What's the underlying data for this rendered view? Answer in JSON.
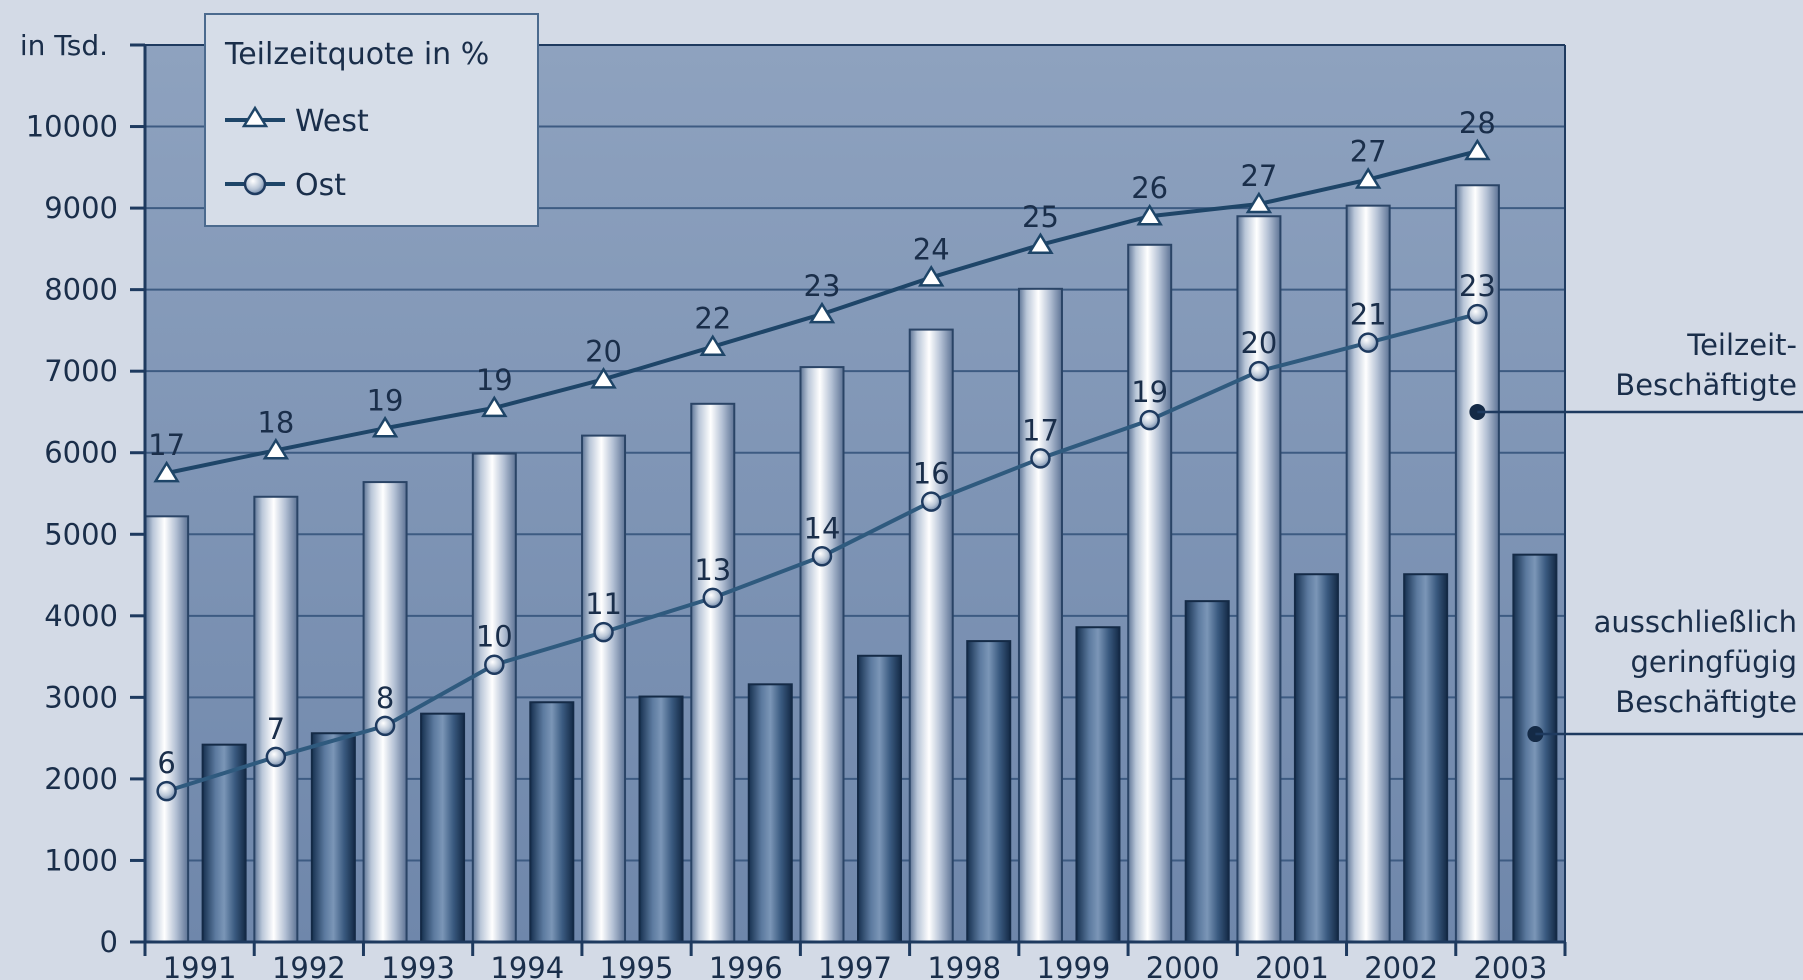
{
  "chart_data": {
    "type": "bar",
    "unit_label": "in Tsd.",
    "ylim": [
      0,
      11000
    ],
    "yticks": [
      0,
      1000,
      2000,
      3000,
      4000,
      5000,
      6000,
      7000,
      8000,
      9000,
      10000
    ],
    "grid": true,
    "categories": [
      "1991",
      "1992",
      "1993",
      "1994",
      "1995",
      "1996",
      "1997",
      "1998",
      "1999",
      "2000",
      "2001",
      "2002",
      "2003"
    ],
    "bar_series": [
      {
        "name": "Teilzeit-Beschäftigte",
        "label_lines": [
          "Teilzeit-",
          "Beschäftigte"
        ],
        "color": "#e6eaf2",
        "values": [
          5220,
          5460,
          5640,
          5990,
          6210,
          6600,
          7050,
          7510,
          8010,
          8550,
          8900,
          9030,
          9280
        ]
      },
      {
        "name": "ausschließlich geringfügig Beschäftigte",
        "label_lines": [
          "ausschließlich",
          "geringfügig",
          "Beschäftigte"
        ],
        "color": "#34547b",
        "values": [
          2420,
          2560,
          2800,
          2940,
          3010,
          3160,
          3510,
          3690,
          3860,
          4180,
          4510,
          4510,
          4750
        ]
      }
    ],
    "line_legend_title": "Teilzeitquote in %",
    "line_series": [
      {
        "name": "West",
        "marker": "triangle",
        "color": "#1e4568",
        "values": [
          17,
          18,
          19,
          19,
          20,
          22,
          23,
          24,
          25,
          26,
          27,
          27,
          28
        ],
        "y_position_thousands": [
          5750,
          6030,
          6300,
          6550,
          6900,
          7300,
          7700,
          8150,
          8550,
          8900,
          9050,
          9350,
          9700
        ]
      },
      {
        "name": "Ost",
        "marker": "circle",
        "color": "#2f5a7e",
        "values": [
          6,
          7,
          8,
          10,
          11,
          13,
          14,
          16,
          17,
          19,
          20,
          21,
          23
        ],
        "y_position_thousands": [
          1850,
          2270,
          2650,
          3400,
          3800,
          4220,
          4730,
          5400,
          5930,
          6400,
          7000,
          7350,
          7700
        ]
      }
    ],
    "colors": {
      "page_background": "#d3dae6",
      "plot_background_top": "#8ea2bf",
      "plot_background_bottom": "#6f87ab",
      "gridline": "#3d5b82",
      "axis": "#1e3a5f",
      "text": "#1a2e4a"
    }
  }
}
